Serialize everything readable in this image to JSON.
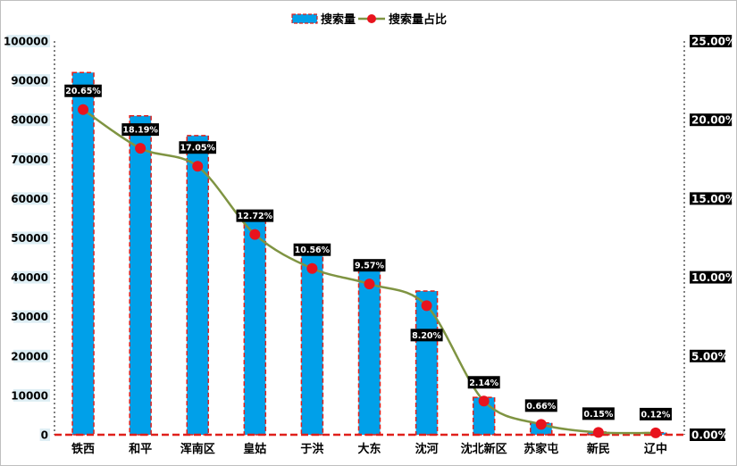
{
  "chart_data": {
    "type": "bar",
    "categories": [
      "铁西",
      "和平",
      "浑南区",
      "皇姑",
      "于洪",
      "大东",
      "沈河",
      "沈北新区",
      "苏家屯",
      "新民",
      "辽中"
    ],
    "series": [
      {
        "name": "搜索量",
        "type": "bar",
        "axis": "left",
        "values": [
          92000,
          81000,
          76000,
          56500,
          47000,
          42500,
          36500,
          9500,
          3000,
          700,
          550
        ]
      },
      {
        "name": "搜索量占比",
        "type": "line",
        "axis": "right",
        "values": [
          20.65,
          18.19,
          17.05,
          12.72,
          10.56,
          9.57,
          8.2,
          2.14,
          0.66,
          0.15,
          0.12
        ],
        "labels": [
          "20.65%",
          "18.19%",
          "17.05%",
          "12.72%",
          "10.56%",
          "9.57%",
          "8.20%",
          "2.14%",
          "0.66%",
          "0.15%",
          "0.12%"
        ]
      }
    ],
    "y_left": {
      "range": [
        0,
        100000
      ],
      "ticks": [
        "0",
        "10000",
        "20000",
        "30000",
        "40000",
        "50000",
        "60000",
        "70000",
        "80000",
        "90000",
        "100000"
      ]
    },
    "y_right": {
      "range": [
        0,
        25
      ],
      "ticks": [
        "0.00%",
        "5.00%",
        "10.00%",
        "15.00%",
        "20.00%",
        "25.00%"
      ]
    },
    "legend": {
      "position": "top-center"
    },
    "grid": false
  },
  "colors": {
    "bar_fill": "#00a0e9",
    "bar_border": "#e0201b",
    "line": "#7f9442",
    "marker": "#e8131d",
    "label_bg": "#000000",
    "label_text": "#ffffff",
    "left_tick_bg": "#deeef4",
    "right_tick_bg": "#000000",
    "baseline": "#e0201b",
    "axis_dotted": "#808080"
  }
}
